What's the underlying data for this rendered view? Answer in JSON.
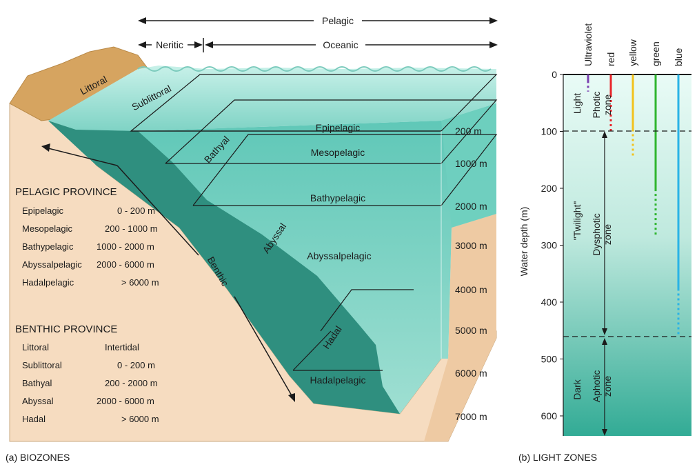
{
  "arrows": {
    "pelagic": "Pelagic",
    "neritic": "Neritic",
    "oceanic": "Oceanic",
    "benthic": "Benthic"
  },
  "zones": {
    "littoral": "Littoral",
    "sublittoral": "Sublittoral",
    "bathyal": "Bathyal",
    "abyssal": "Abyssal",
    "hadal": "Hadal",
    "epipelagic": "Epipelagic",
    "mesopelagic": "Mesopelagic",
    "bathypelagic": "Bathypelagic",
    "abyssalpelagic": "Abyssalpelagic",
    "hadalpelagic": "Hadalpelagic"
  },
  "depth_marks": [
    "200 m",
    "1000 m",
    "2000 m",
    "3000 m",
    "4000 m",
    "5000 m",
    "6000 m",
    "7000 m"
  ],
  "pelagic_province": {
    "title": "PELAGIC PROVINCE",
    "rows": [
      {
        "name": "Epipelagic",
        "range": "0 - 200 m"
      },
      {
        "name": "Mesopelagic",
        "range": "200 - 1000 m"
      },
      {
        "name": "Bathypelagic",
        "range": "1000 - 2000 m"
      },
      {
        "name": "Abyssalpelagic",
        "range": "2000 - 6000 m"
      },
      {
        "name": "Hadalpelagic",
        "range": "> 6000 m"
      }
    ]
  },
  "benthic_province": {
    "title": "BENTHIC PROVINCE",
    "rows": [
      {
        "name": "Littoral",
        "range": "Intertidal"
      },
      {
        "name": "Sublittoral",
        "range": "0 - 200 m"
      },
      {
        "name": "Bathyal",
        "range": "200 - 2000 m"
      },
      {
        "name": "Abyssal",
        "range": "2000 - 6000 m"
      },
      {
        "name": "Hadal",
        "range": "> 6000 m"
      }
    ]
  },
  "captions": {
    "a": "(a) BIOZONES",
    "b": "(b) LIGHT ZONES"
  },
  "light": {
    "axis_label": "Water depth (m)",
    "ticks": [
      "0",
      "100",
      "200",
      "300",
      "400",
      "500",
      "600"
    ],
    "zones": {
      "light": "Light",
      "twilight": "\"Twilight\"",
      "dark": "Dark",
      "photic": "Photic",
      "photic_zone": "zone",
      "dysphotic": "Dysphotic",
      "dysphotic_zone": "zone",
      "aphotic": "Aphotic",
      "aphotic_zone": "zone"
    },
    "wavelengths": [
      {
        "name": "Ultraviolet",
        "color": "#7a3fb0",
        "solid_to": 15,
        "dotted_to": 30
      },
      {
        "name": "red",
        "color": "#e8262b",
        "solid_to": 40,
        "dotted_to": 100
      },
      {
        "name": "yellow",
        "color": "#f2c21c",
        "solid_to": 100,
        "dotted_to": 145
      },
      {
        "name": "green",
        "color": "#2fb52f",
        "solid_to": 205,
        "dotted_to": 285
      },
      {
        "name": "blue",
        "color": "#29b3e6",
        "solid_to": 380,
        "dotted_to": 460
      }
    ]
  },
  "colors": {
    "sediment": "#f6dcc0",
    "land": "#d6a460",
    "deep_water": "#2f8f7f",
    "shallow_water": "#a7e2d6"
  }
}
